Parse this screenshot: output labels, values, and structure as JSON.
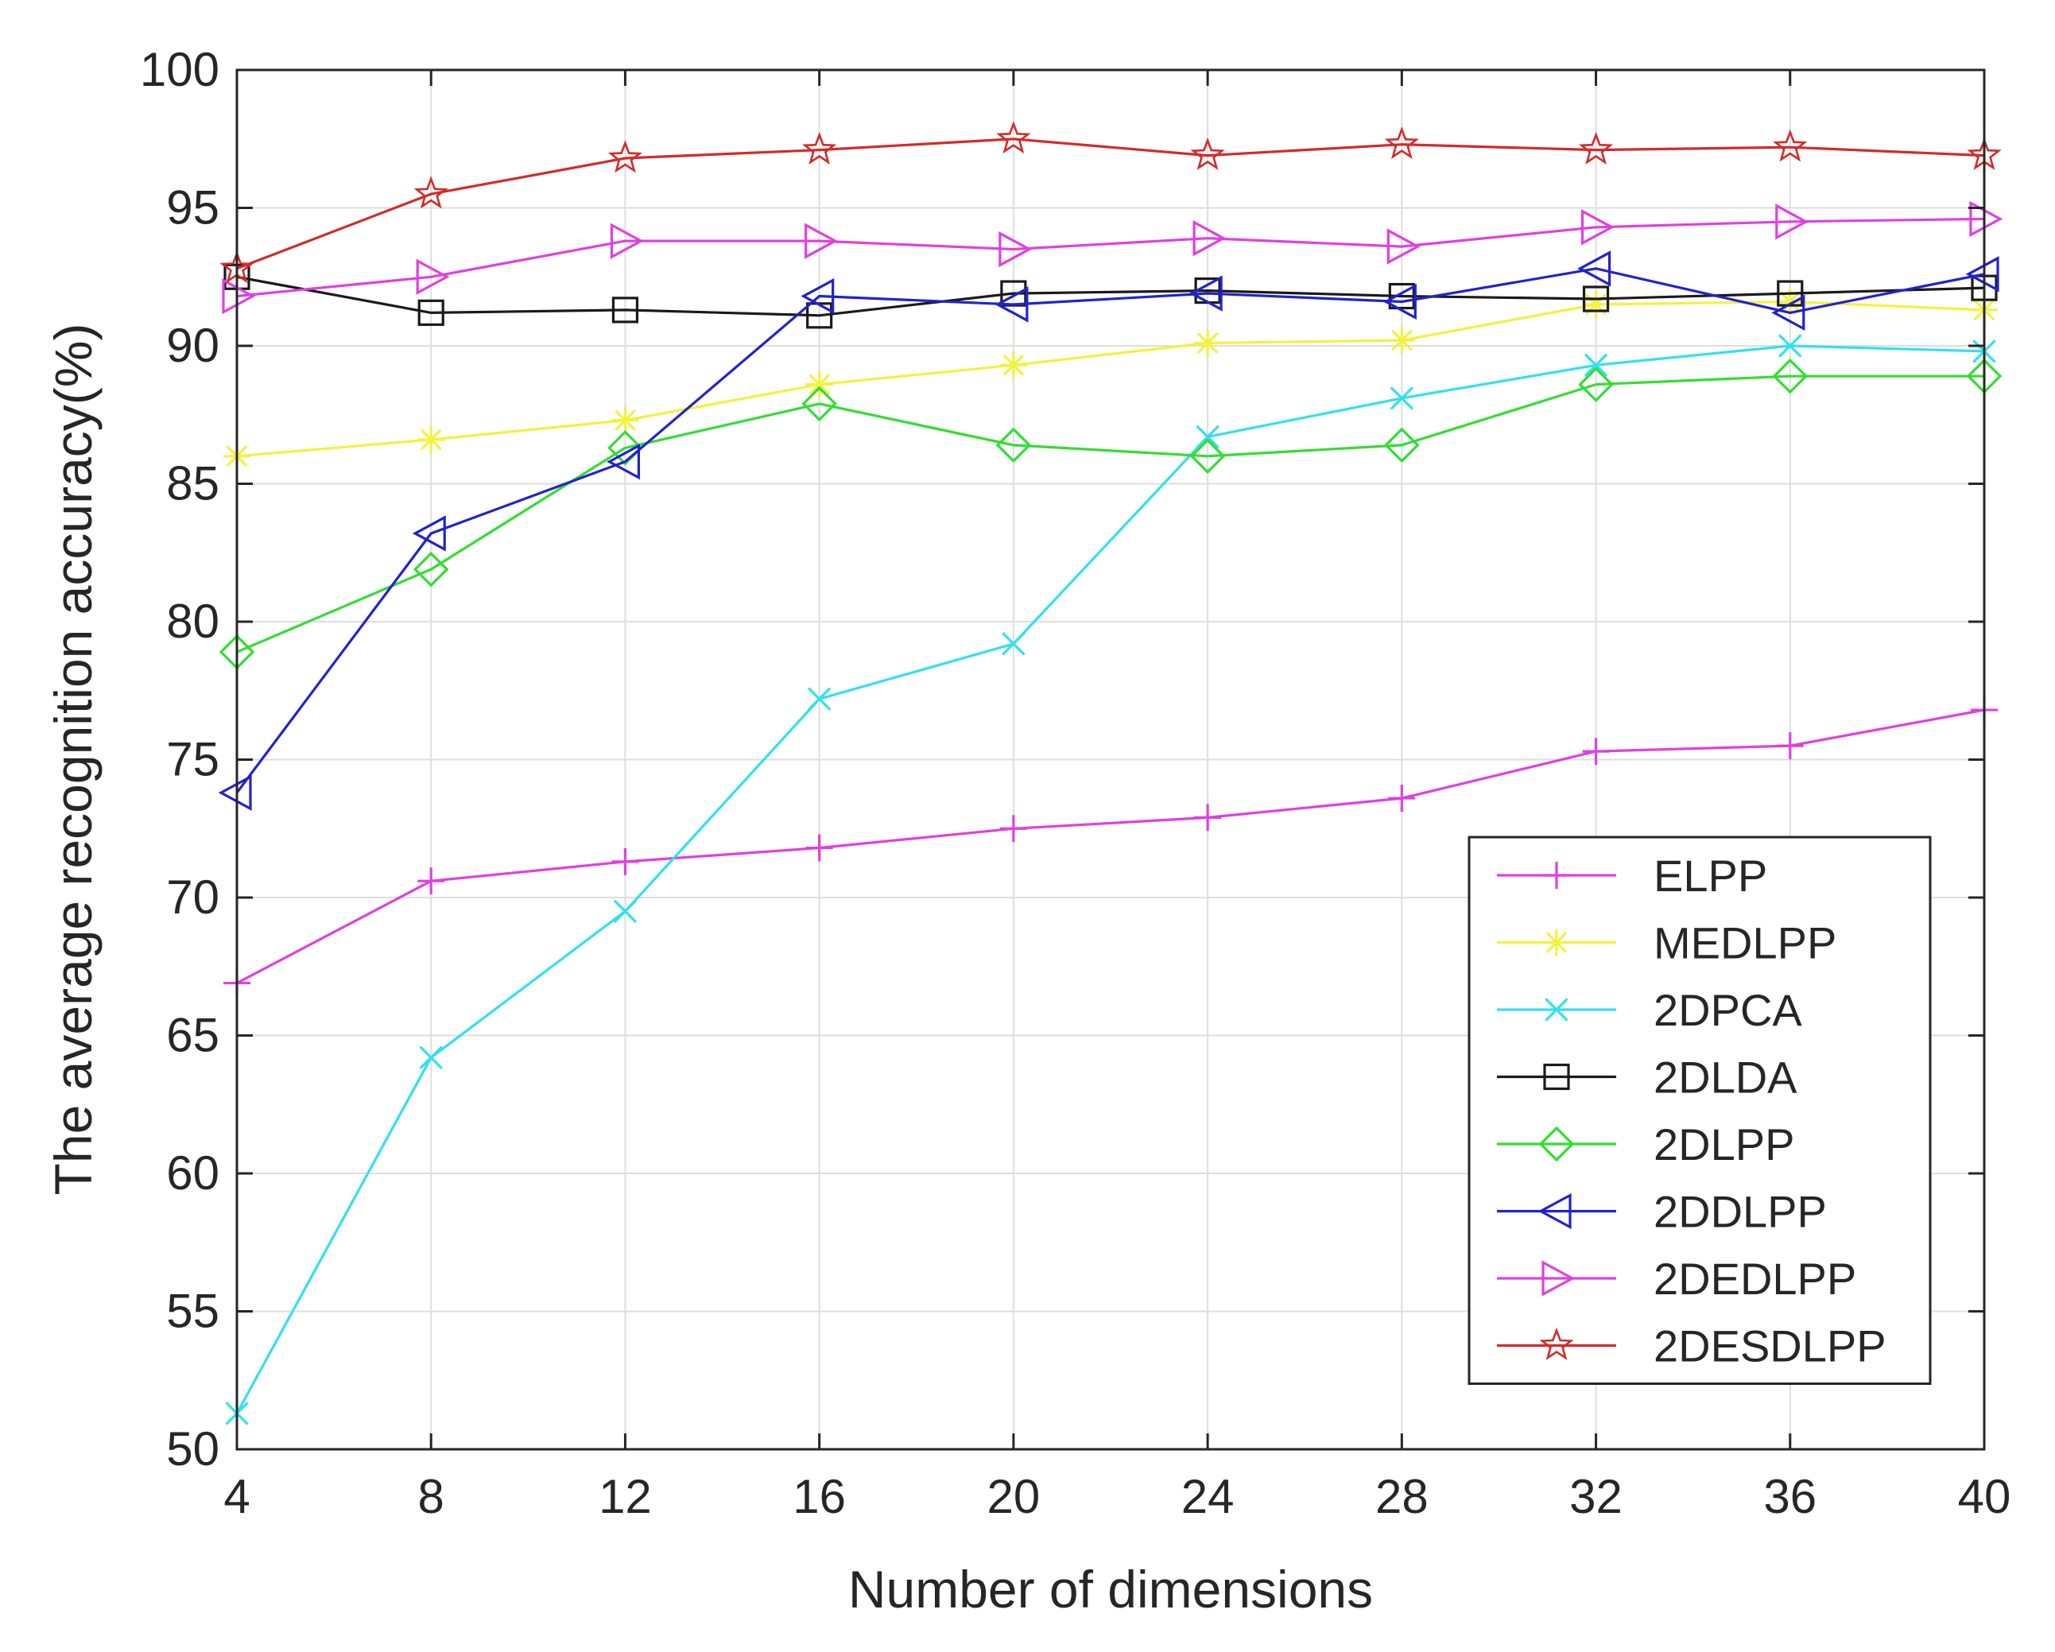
{
  "chart_data": {
    "type": "line",
    "title": "",
    "xlabel": "Number of dimensions",
    "ylabel": "The average recognition accuracy(%)",
    "xlim": [
      4,
      40
    ],
    "ylim": [
      50,
      100
    ],
    "xticks": [
      4,
      8,
      12,
      16,
      20,
      24,
      28,
      32,
      36,
      40
    ],
    "yticks": [
      50,
      55,
      60,
      65,
      70,
      75,
      80,
      85,
      90,
      95,
      100
    ],
    "grid": true,
    "legend_position": "bottom-right",
    "x": [
      4,
      8,
      12,
      16,
      20,
      24,
      28,
      32,
      36,
      40
    ],
    "series": [
      {
        "name": "ELPP",
        "color": "#e040e0",
        "marker": "plus",
        "values": [
          66.9,
          70.6,
          71.3,
          71.8,
          72.5,
          72.9,
          73.6,
          75.3,
          75.5,
          76.8
        ]
      },
      {
        "name": "MEDLPP",
        "color": "#f2f240",
        "marker": "asterisk",
        "values": [
          86.0,
          86.6,
          87.3,
          88.6,
          89.3,
          90.1,
          90.2,
          91.5,
          91.6,
          91.3
        ]
      },
      {
        "name": "2DPCA",
        "color": "#33e0ee",
        "marker": "x",
        "values": [
          51.3,
          64.2,
          69.5,
          77.2,
          79.2,
          86.7,
          88.1,
          89.3,
          90.0,
          89.8
        ]
      },
      {
        "name": "2DLDA",
        "color": "#1a1a1a",
        "marker": "square",
        "values": [
          92.5,
          91.2,
          91.3,
          91.1,
          91.9,
          92.0,
          91.8,
          91.7,
          91.9,
          92.1
        ]
      },
      {
        "name": "2DLPP",
        "color": "#33dd33",
        "marker": "diamond",
        "values": [
          78.9,
          81.9,
          86.3,
          87.9,
          86.4,
          86.0,
          86.4,
          88.6,
          88.9,
          88.9
        ]
      },
      {
        "name": "2DDLPP",
        "color": "#2222cc",
        "marker": "triangle-left",
        "values": [
          73.8,
          83.2,
          85.8,
          91.8,
          91.5,
          91.9,
          91.6,
          92.8,
          91.2,
          92.6
        ]
      },
      {
        "name": "2DEDLPP",
        "color": "#e040e0",
        "marker": "triangle-right",
        "values": [
          91.8,
          92.5,
          93.8,
          93.8,
          93.5,
          93.9,
          93.6,
          94.3,
          94.5,
          94.6
        ]
      },
      {
        "name": "2DESDLPP",
        "color": "#d22b2b",
        "marker": "star",
        "values": [
          92.8,
          95.5,
          96.8,
          97.1,
          97.5,
          96.9,
          97.3,
          97.1,
          97.2,
          96.9
        ]
      }
    ]
  }
}
